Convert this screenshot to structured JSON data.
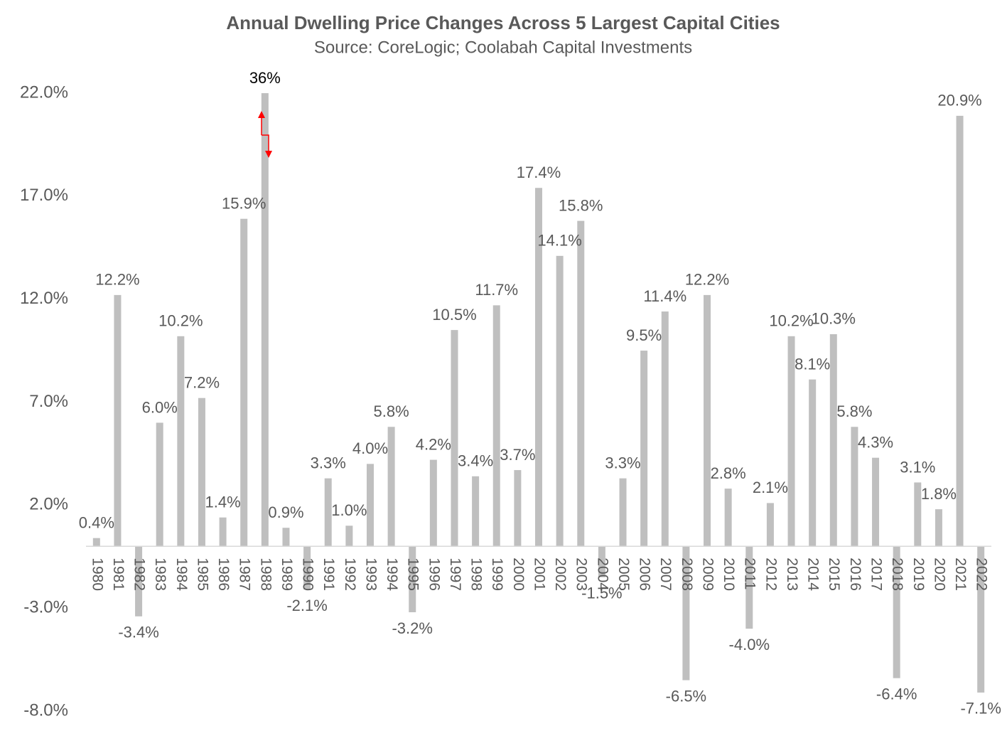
{
  "chart_data": {
    "type": "bar",
    "title": "Annual Dwelling Price Changes Across 5 Largest Capital Cities",
    "subtitle": "Source: CoreLogic; Coolabah Capital Investments",
    "categories": [
      "1980",
      "1981",
      "1982",
      "1983",
      "1984",
      "1985",
      "1986",
      "1987",
      "1988",
      "1989",
      "1990",
      "1991",
      "1992",
      "1993",
      "1994",
      "1995",
      "1996",
      "1997",
      "1998",
      "1999",
      "2000",
      "2001",
      "2002",
      "2003",
      "2004",
      "2005",
      "2006",
      "2007",
      "2008",
      "2009",
      "2010",
      "2011",
      "2012",
      "2013",
      "2014",
      "2015",
      "2016",
      "2017",
      "2018",
      "2019",
      "2020",
      "2021",
      "2022"
    ],
    "values": [
      0.4,
      12.2,
      -3.4,
      6.0,
      10.2,
      7.2,
      1.4,
      15.9,
      36,
      0.9,
      -2.1,
      3.3,
      1.0,
      4.0,
      5.8,
      -3.2,
      4.2,
      10.5,
      3.4,
      11.7,
      3.7,
      17.4,
      14.1,
      15.8,
      -1.5,
      3.3,
      9.5,
      11.4,
      -6.5,
      12.2,
      2.8,
      -4.0,
      2.1,
      10.2,
      8.1,
      10.3,
      5.8,
      4.3,
      -6.4,
      3.1,
      1.8,
      20.9,
      -7.1
    ],
    "value_labels": [
      "0.4%",
      "12.2%",
      "-3.4%",
      "6.0%",
      "10.2%",
      "7.2%",
      "1.4%",
      "15.9%",
      "36%",
      "0.9%",
      "-2.1%",
      "3.3%",
      "1.0%",
      "4.0%",
      "5.8%",
      "-3.2%",
      "4.2%",
      "10.5%",
      "3.4%",
      "11.7%",
      "3.7%",
      "17.4%",
      "14.1%",
      "15.8%",
      "-1.5%",
      "3.3%",
      "9.5%",
      "11.4%",
      "-6.5%",
      "12.2%",
      "2.8%",
      "-4.0%",
      "2.1%",
      "10.2%",
      "8.1%",
      "10.3%",
      "5.8%",
      "4.3%",
      "-6.4%",
      "3.1%",
      "1.8%",
      "20.9%",
      "-7.1%"
    ],
    "color": "#bfbfbf",
    "ylim": [
      -8,
      22
    ],
    "yticks": [
      {
        "value": -8,
        "label": "-8.0%"
      },
      {
        "value": -3,
        "label": "-3.0%"
      },
      {
        "value": 2,
        "label": "2.0%"
      },
      {
        "value": 7,
        "label": "7.0%"
      },
      {
        "value": 12,
        "label": "12.0%"
      },
      {
        "value": 17,
        "label": "17.0%"
      },
      {
        "value": 22,
        "label": "22.0%"
      }
    ],
    "grid": false
  }
}
